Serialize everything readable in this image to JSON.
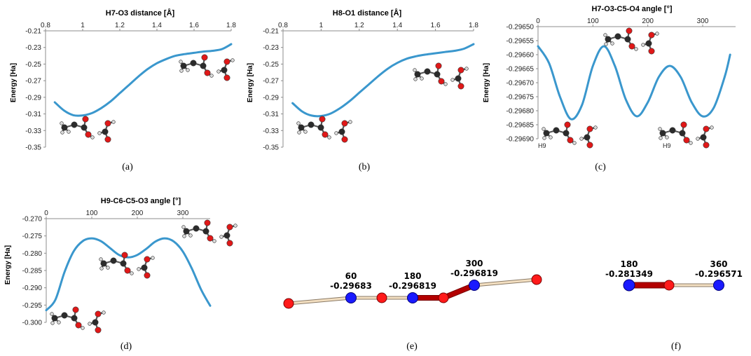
{
  "chart_data": [
    {
      "type": "line",
      "panel": "a",
      "caption": "(a)",
      "title": "H7-O3 distance [Å]",
      "xlabel": "",
      "ylabel": "Energy [Ha]",
      "xlim": [
        0.8,
        1.8
      ],
      "ylim": [
        -0.35,
        -0.21
      ],
      "xticks": [
        "0.8",
        "1",
        "1.2",
        "1.4",
        "1.6",
        "1.8"
      ],
      "yticks": [
        "-0.21",
        "-0.23",
        "-0.25",
        "-0.27",
        "-0.29",
        "-0.31",
        "-0.33",
        "-0.35"
      ],
      "x": [
        0.85,
        0.9,
        0.95,
        1.0,
        1.05,
        1.1,
        1.15,
        1.2,
        1.25,
        1.3,
        1.35,
        1.4,
        1.45,
        1.5,
        1.55,
        1.6,
        1.65,
        1.7,
        1.75,
        1.8
      ],
      "y": [
        -0.296,
        -0.306,
        -0.3115,
        -0.3118,
        -0.309,
        -0.303,
        -0.295,
        -0.285,
        -0.275,
        -0.265,
        -0.256,
        -0.249,
        -0.244,
        -0.24,
        -0.238,
        -0.2365,
        -0.235,
        -0.234,
        -0.232,
        -0.226
      ]
    },
    {
      "type": "line",
      "panel": "b",
      "caption": "(b)",
      "title": "H8-O1 distance [Å]",
      "xlabel": "",
      "ylabel": "Energy [Ha]",
      "xlim": [
        0.8,
        1.8
      ],
      "ylim": [
        -0.35,
        -0.21
      ],
      "xticks": [
        "0.8",
        "1",
        "1.2",
        "1.4",
        "1.6",
        "1.8"
      ],
      "yticks": [
        "-0.21",
        "-0.23",
        "-0.25",
        "-0.27",
        "-0.29",
        "-0.31",
        "-0.33",
        "-0.35"
      ],
      "x": [
        0.85,
        0.9,
        0.95,
        1.0,
        1.05,
        1.1,
        1.15,
        1.2,
        1.25,
        1.3,
        1.35,
        1.4,
        1.45,
        1.5,
        1.55,
        1.6,
        1.65,
        1.7,
        1.75,
        1.8
      ],
      "y": [
        -0.297,
        -0.307,
        -0.312,
        -0.3125,
        -0.3095,
        -0.303,
        -0.2945,
        -0.2845,
        -0.2745,
        -0.2645,
        -0.2555,
        -0.2485,
        -0.2435,
        -0.2405,
        -0.2385,
        -0.237,
        -0.2355,
        -0.234,
        -0.2315,
        -0.226
      ]
    },
    {
      "type": "line",
      "panel": "c",
      "caption": "(c)",
      "title": "H7-O3-C5-O4 angle [°]",
      "xlabel": "",
      "ylabel": "Energy [Ha]",
      "xlim": [
        0,
        360
      ],
      "ylim": [
        -0.2969,
        -0.2965
      ],
      "xticks": [
        "0",
        "100",
        "200",
        "300"
      ],
      "yticks": [
        "-0.29650",
        "-0.29655",
        "-0.29660",
        "-0.29665",
        "-0.29670",
        "-0.29675",
        "-0.29680",
        "-0.29685",
        "-0.29690"
      ],
      "x": [
        0,
        20,
        40,
        60,
        80,
        100,
        120,
        140,
        160,
        180,
        200,
        220,
        240,
        260,
        280,
        300,
        320,
        340,
        350
      ],
      "y": [
        -0.29657,
        -0.29663,
        -0.29675,
        -0.29683,
        -0.29678,
        -0.29664,
        -0.29657,
        -0.29664,
        -0.29676,
        -0.29682,
        -0.29677,
        -0.29668,
        -0.29664,
        -0.29668,
        -0.29677,
        -0.29682,
        -0.29679,
        -0.29668,
        -0.2966
      ]
    },
    {
      "type": "line",
      "panel": "d",
      "caption": "(d)",
      "title": "H9-C6-C5-O3 angle [°]",
      "xlabel": "",
      "ylabel": "Energy [Ha]",
      "xlim": [
        0,
        360
      ],
      "ylim": [
        -0.3,
        -0.27
      ],
      "xticks": [
        "0",
        "100",
        "200",
        "300"
      ],
      "yticks": [
        "-0.270",
        "-0.275",
        "-0.280",
        "-0.285",
        "-0.290",
        "-0.295",
        "-0.300"
      ],
      "x": [
        0,
        20,
        40,
        60,
        80,
        100,
        120,
        140,
        160,
        180,
        200,
        220,
        240,
        260,
        280,
        300,
        320,
        340,
        360
      ],
      "y": [
        -0.2965,
        -0.2935,
        -0.2855,
        -0.2795,
        -0.2765,
        -0.2757,
        -0.2765,
        -0.2785,
        -0.2805,
        -0.2812,
        -0.2805,
        -0.2787,
        -0.2766,
        -0.2757,
        -0.2766,
        -0.2795,
        -0.2845,
        -0.2905,
        -0.2952
      ]
    }
  ],
  "side_labels": {
    "c_left": "H9",
    "c_right": "H9"
  },
  "graphs": [
    {
      "panel": "e",
      "caption": "(e)",
      "labels": [
        {
          "angle": "60",
          "energy": "-0.29683"
        },
        {
          "angle": "180",
          "energy": "-0.296819"
        },
        {
          "angle": "300",
          "energy": "-0.296819"
        }
      ]
    },
    {
      "panel": "f",
      "caption": "(f)",
      "labels": [
        {
          "angle": "180",
          "energy": "-0.281349"
        },
        {
          "angle": "360",
          "energy": "-0.296571"
        }
      ]
    }
  ],
  "colors": {
    "curve": "#3a97cd",
    "node_red": "#ff1a1a",
    "node_blue": "#1a1aff",
    "edge_strong": "#b30000",
    "edge_weak": "#f3dfc1",
    "atom_carbon": "#2b2b2b",
    "atom_oxygen": "#e01818",
    "atom_hydrogen": "#d9d9d9"
  }
}
